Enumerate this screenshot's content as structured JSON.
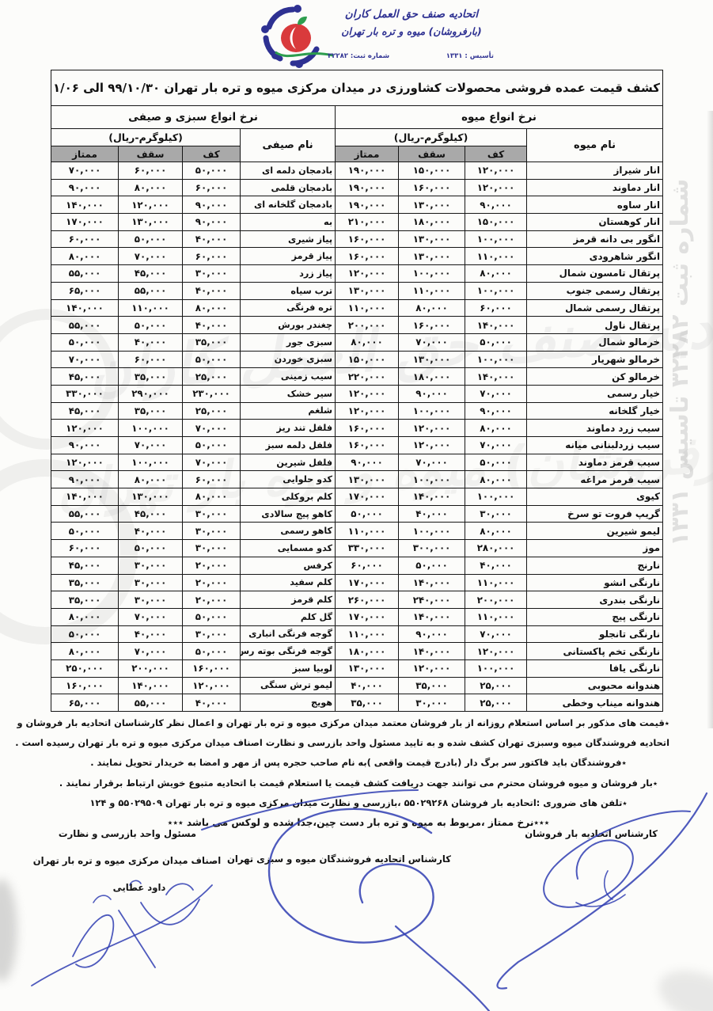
{
  "logo": {
    "line1": "اتحادیه صنف حق العمل کاران",
    "line2": "(بارفروشان) میوه و تره بار تهران",
    "registration": "شماره ثبت: ۳۲۲۸۲",
    "established": "تأسیس : ۱۳۳۱"
  },
  "title": "کشف قیمت عمده فروشی محصولات کشاورزی در میدان مرکزی میوه و تره بار تهران ۹۹/۱۰/۳۰  الی ۹۹/۱۱/۰۶",
  "sections": {
    "fruit": {
      "header": "نرخ انواع میوه",
      "unit": "(کیلوگرم-ریال)",
      "name_col": "نام میوه",
      "cols": [
        "کف",
        "سقف",
        "ممتاز"
      ]
    },
    "veg": {
      "header": "نرخ انواع سبزی و صیفی",
      "unit": "(کیلوگرم-ریال)",
      "name_col": "نام صیفی",
      "cols": [
        "کف",
        "سقف",
        "ممتاز"
      ]
    }
  },
  "table": {
    "fruits": [
      {
        "name": "انار شیراز",
        "kaf": "۱۲۰,۰۰۰",
        "saghf": "۱۵۰,۰۰۰",
        "momtaz": "۱۹۰,۰۰۰"
      },
      {
        "name": "انار دماوند",
        "kaf": "۱۲۰,۰۰۰",
        "saghf": "۱۶۰,۰۰۰",
        "momtaz": "۱۹۰,۰۰۰"
      },
      {
        "name": "انار ساوه",
        "kaf": "۹۰,۰۰۰",
        "saghf": "۱۳۰,۰۰۰",
        "momtaz": "۱۹۰,۰۰۰"
      },
      {
        "name": "انار کوهستان",
        "kaf": "۱۵۰,۰۰۰",
        "saghf": "۱۸۰,۰۰۰",
        "momtaz": "۲۱۰,۰۰۰"
      },
      {
        "name": "انگور بی دانه قرمز",
        "kaf": "۱۰۰,۰۰۰",
        "saghf": "۱۳۰,۰۰۰",
        "momtaz": "۱۶۰,۰۰۰"
      },
      {
        "name": "انگور شاهرودی",
        "kaf": "۱۱۰,۰۰۰",
        "saghf": "۱۳۰,۰۰۰",
        "momtaz": "۱۶۰,۰۰۰"
      },
      {
        "name": "پرتقال تامسون شمال",
        "kaf": "۸۰,۰۰۰",
        "saghf": "۱۰۰,۰۰۰",
        "momtaz": "۱۲۰,۰۰۰"
      },
      {
        "name": "پرتقال رسمی جنوب",
        "kaf": "۱۰۰,۰۰۰",
        "saghf": "۱۱۰,۰۰۰",
        "momtaz": "۱۳۰,۰۰۰"
      },
      {
        "name": "پرتقال رسمی شمال",
        "kaf": "۶۰,۰۰۰",
        "saghf": "۸۰,۰۰۰",
        "momtaz": "۱۱۰,۰۰۰"
      },
      {
        "name": "پرتقال ناول",
        "kaf": "۱۴۰,۰۰۰",
        "saghf": "۱۶۰,۰۰۰",
        "momtaz": "۲۰۰,۰۰۰"
      },
      {
        "name": "خرمالو شمال",
        "kaf": "۵۰,۰۰۰",
        "saghf": "۷۰,۰۰۰",
        "momtaz": "۸۰,۰۰۰"
      },
      {
        "name": "خرمالو شهریار",
        "kaf": "۱۰۰,۰۰۰",
        "saghf": "۱۳۰,۰۰۰",
        "momtaz": "۱۵۰,۰۰۰"
      },
      {
        "name": "خرمالو کن",
        "kaf": "۱۴۰,۰۰۰",
        "saghf": "۱۸۰,۰۰۰",
        "momtaz": "۲۲۰,۰۰۰"
      },
      {
        "name": "خیار رسمی",
        "kaf": "۷۰,۰۰۰",
        "saghf": "۹۰,۰۰۰",
        "momtaz": "۱۲۰,۰۰۰"
      },
      {
        "name": "خیار گلخانه",
        "kaf": "۹۰,۰۰۰",
        "saghf": "۱۰۰,۰۰۰",
        "momtaz": "۱۲۰,۰۰۰"
      },
      {
        "name": "سیب زرد دماوند",
        "kaf": "۸۰,۰۰۰",
        "saghf": "۱۲۰,۰۰۰",
        "momtaz": "۱۶۰,۰۰۰"
      },
      {
        "name": "سیب زردلبنانی میانه",
        "kaf": "۷۰,۰۰۰",
        "saghf": "۱۲۰,۰۰۰",
        "momtaz": "۱۶۰,۰۰۰"
      },
      {
        "name": "سیب قرمز دماوند",
        "kaf": "۵۰,۰۰۰",
        "saghf": "۷۰,۰۰۰",
        "momtaz": "۹۰,۰۰۰"
      },
      {
        "name": "سیب قرمز مراغه",
        "kaf": "۸۰,۰۰۰",
        "saghf": "۱۰۰,۰۰۰",
        "momtaz": "۱۳۰,۰۰۰"
      },
      {
        "name": "کیوی",
        "kaf": "۱۰۰,۰۰۰",
        "saghf": "۱۴۰,۰۰۰",
        "momtaz": "۱۷۰,۰۰۰"
      },
      {
        "name": "گریپ فروت تو سرخ",
        "kaf": "۳۰,۰۰۰",
        "saghf": "۴۰,۰۰۰",
        "momtaz": "۵۰,۰۰۰"
      },
      {
        "name": "لیمو شیرین",
        "kaf": "۸۰,۰۰۰",
        "saghf": "۱۰۰,۰۰۰",
        "momtaz": "۱۱۰,۰۰۰"
      },
      {
        "name": "موز",
        "kaf": "۲۸۰,۰۰۰",
        "saghf": "۳۰۰,۰۰۰",
        "momtaz": "۳۳۰,۰۰۰"
      },
      {
        "name": "نارنج",
        "kaf": "۴۰,۰۰۰",
        "saghf": "۵۰,۰۰۰",
        "momtaz": "۶۰,۰۰۰"
      },
      {
        "name": "نارنگی انشو",
        "kaf": "۱۱۰,۰۰۰",
        "saghf": "۱۴۰,۰۰۰",
        "momtaz": "۱۷۰,۰۰۰"
      },
      {
        "name": "نارنگی بندری",
        "kaf": "۲۰۰,۰۰۰",
        "saghf": "۲۴۰,۰۰۰",
        "momtaz": "۲۶۰,۰۰۰"
      },
      {
        "name": "نارنگی پیج",
        "kaf": "۱۱۰,۰۰۰",
        "saghf": "۱۴۰,۰۰۰",
        "momtaz": "۱۷۰,۰۰۰"
      },
      {
        "name": "نارنگی تانجلو",
        "kaf": "۷۰,۰۰۰",
        "saghf": "۹۰,۰۰۰",
        "momtaz": "۱۱۰,۰۰۰"
      },
      {
        "name": "نارنگی تخم پاکستانی",
        "kaf": "۱۲۰,۰۰۰",
        "saghf": "۱۴۰,۰۰۰",
        "momtaz": "۱۸۰,۰۰۰"
      },
      {
        "name": "نارنگی یافا",
        "kaf": "۱۰۰,۰۰۰",
        "saghf": "۱۲۰,۰۰۰",
        "momtaz": "۱۳۰,۰۰۰"
      },
      {
        "name": "هندوانه محبوبی",
        "kaf": "۲۵,۰۰۰",
        "saghf": "۳۵,۰۰۰",
        "momtaz": "۴۰,۰۰۰"
      },
      {
        "name": "هندوانه میناب وخطی",
        "kaf": "۲۵,۰۰۰",
        "saghf": "۳۰,۰۰۰",
        "momtaz": "۳۵,۰۰۰"
      }
    ],
    "vegetables": [
      {
        "name": "بادمجان دلمه ای",
        "kaf": "۵۰,۰۰۰",
        "saghf": "۶۰,۰۰۰",
        "momtaz": "۷۰,۰۰۰"
      },
      {
        "name": "بادمجان قلمی",
        "kaf": "۶۰,۰۰۰",
        "saghf": "۸۰,۰۰۰",
        "momtaz": "۹۰,۰۰۰"
      },
      {
        "name": "بادمجان گلخانه ای",
        "kaf": "۹۰,۰۰۰",
        "saghf": "۱۲۰,۰۰۰",
        "momtaz": "۱۴۰,۰۰۰"
      },
      {
        "name": "به",
        "kaf": "۹۰,۰۰۰",
        "saghf": "۱۳۰,۰۰۰",
        "momtaz": "۱۷۰,۰۰۰"
      },
      {
        "name": "پیاز شیری",
        "kaf": "۴۰,۰۰۰",
        "saghf": "۵۰,۰۰۰",
        "momtaz": "۶۰,۰۰۰"
      },
      {
        "name": "پیاز قرمز",
        "kaf": "۶۰,۰۰۰",
        "saghf": "۷۰,۰۰۰",
        "momtaz": "۸۰,۰۰۰"
      },
      {
        "name": "پیاز زرد",
        "kaf": "۳۰,۰۰۰",
        "saghf": "۴۵,۰۰۰",
        "momtaz": "۵۵,۰۰۰"
      },
      {
        "name": "ترب سیاه",
        "kaf": "۴۰,۰۰۰",
        "saghf": "۵۵,۰۰۰",
        "momtaz": "۶۵,۰۰۰"
      },
      {
        "name": "تره فرنگی",
        "kaf": "۸۰,۰۰۰",
        "saghf": "۱۱۰,۰۰۰",
        "momtaz": "۱۴۰,۰۰۰"
      },
      {
        "name": "چغندر بورش",
        "kaf": "۴۰,۰۰۰",
        "saghf": "۵۰,۰۰۰",
        "momtaz": "۵۵,۰۰۰"
      },
      {
        "name": "سبزی جور",
        "kaf": "۳۵,۰۰۰",
        "saghf": "۴۰,۰۰۰",
        "momtaz": "۵۰,۰۰۰"
      },
      {
        "name": "سبزی خوردن",
        "kaf": "۵۰,۰۰۰",
        "saghf": "۶۰,۰۰۰",
        "momtaz": "۷۰,۰۰۰"
      },
      {
        "name": "سیب زمینی",
        "kaf": "۲۵,۰۰۰",
        "saghf": "۳۵,۰۰۰",
        "momtaz": "۴۵,۰۰۰"
      },
      {
        "name": "سیر خشک",
        "kaf": "۲۳۰,۰۰۰",
        "saghf": "۲۹۰,۰۰۰",
        "momtaz": "۳۳۰,۰۰۰"
      },
      {
        "name": "شلغم",
        "kaf": "۲۵,۰۰۰",
        "saghf": "۳۵,۰۰۰",
        "momtaz": "۴۵,۰۰۰"
      },
      {
        "name": "فلفل تند ریز",
        "kaf": "۷۰,۰۰۰",
        "saghf": "۱۰۰,۰۰۰",
        "momtaz": "۱۲۰,۰۰۰"
      },
      {
        "name": "فلفل دلمه سبز",
        "kaf": "۵۰,۰۰۰",
        "saghf": "۷۰,۰۰۰",
        "momtaz": "۹۰,۰۰۰"
      },
      {
        "name": "فلفل شیرین",
        "kaf": "۷۰,۰۰۰",
        "saghf": "۱۰۰,۰۰۰",
        "momtaz": "۱۲۰,۰۰۰"
      },
      {
        "name": "کدو حلوایی",
        "kaf": "۶۰,۰۰۰",
        "saghf": "۸۰,۰۰۰",
        "momtaz": "۹۰,۰۰۰"
      },
      {
        "name": "کلم بروکلی",
        "kaf": "۸۰,۰۰۰",
        "saghf": "۱۳۰,۰۰۰",
        "momtaz": "۱۴۰,۰۰۰"
      },
      {
        "name": "کاهو پیج سالادی",
        "kaf": "۳۰,۰۰۰",
        "saghf": "۴۵,۰۰۰",
        "momtaz": "۵۵,۰۰۰"
      },
      {
        "name": "کاهو رسمی",
        "kaf": "۳۰,۰۰۰",
        "saghf": "۴۰,۰۰۰",
        "momtaz": "۵۰,۰۰۰"
      },
      {
        "name": "کدو مسمایی",
        "kaf": "۳۰,۰۰۰",
        "saghf": "۵۰,۰۰۰",
        "momtaz": "۶۰,۰۰۰"
      },
      {
        "name": "کرفس",
        "kaf": "۲۰,۰۰۰",
        "saghf": "۳۰,۰۰۰",
        "momtaz": "۴۵,۰۰۰"
      },
      {
        "name": "کلم سفید",
        "kaf": "۲۰,۰۰۰",
        "saghf": "۳۰,۰۰۰",
        "momtaz": "۳۵,۰۰۰"
      },
      {
        "name": "کلم قرمز",
        "kaf": "۲۰,۰۰۰",
        "saghf": "۳۰,۰۰۰",
        "momtaz": "۳۵,۰۰۰"
      },
      {
        "name": "گل کلم",
        "kaf": "۵۰,۰۰۰",
        "saghf": "۷۰,۰۰۰",
        "momtaz": "۸۰,۰۰۰"
      },
      {
        "name": "گوجه فرنگی انباری",
        "kaf": "۳۰,۰۰۰",
        "saghf": "۴۰,۰۰۰",
        "momtaz": "۵۰,۰۰۰"
      },
      {
        "name": "گوجه فرنگی بوته رس",
        "kaf": "۵۰,۰۰۰",
        "saghf": "۷۰,۰۰۰",
        "momtaz": "۸۰,۰۰۰"
      },
      {
        "name": "لوبیا سبز",
        "kaf": "۱۶۰,۰۰۰",
        "saghf": "۲۰۰,۰۰۰",
        "momtaz": "۲۵۰,۰۰۰"
      },
      {
        "name": "لیمو ترش سنگی",
        "kaf": "۱۲۰,۰۰۰",
        "saghf": "۱۴۰,۰۰۰",
        "momtaz": "۱۶۰,۰۰۰"
      },
      {
        "name": "هویج",
        "kaf": "۴۰,۰۰۰",
        "saghf": "۵۵,۰۰۰",
        "momtaz": "۶۵,۰۰۰"
      }
    ]
  },
  "notes": [
    {
      "text": "٭قیمت های مذکور بر اساس استعلام روزانه از بار فروشان معتمد میدان مرکزی میوه و تره بار تهران و اعمال نظر کارشناسان اتحادیه بار فروشان و",
      "align": "right"
    },
    {
      "text": "اتحادیه فروشندگان میوه وسبزی تهران کشف شده و به تایید مسئول واحد بازرسی و نظارت اصناف میدان مرکزی میوه و تره بار تهران رسیده است .",
      "align": "right"
    },
    {
      "text": "٭فروشندگان باید فاکتور سر برگ دار (بادرج قیمت واقعی )به نام صاحب حجره پس از مهر و امضا به خریدار تحویل نمایند .",
      "align": "center"
    },
    {
      "text": "٭بار فروشان و میوه فروشان محترم می توانند جهت دریافت کشف قیمت  یا استعلام قیمت با اتحادیه متبوع خویش ارتباط برقرار نمایند .",
      "align": "center"
    },
    {
      "text": "٭تلفن های ضروری :اتحادیه بار فروشان  ۵۵۰۲۹۲۶۸  ،بازرسی و نظارت میدان مرکزی میوه و تره بار تهران ۵۵۰۲۹۵۰۹  و  ۱۲۴",
      "align": "center"
    },
    {
      "text": "٭٭٭نرخ ممتاز ،مربوط به میوه و تره بار دست چین،جدا شده و لوکس می باشد ٭٭٭",
      "align": "center last"
    }
  ],
  "signatures": {
    "right_label": "کارشناس اتحادیه بار فروشان",
    "center_label": "کارشناس اتحادیه فروشندگان میوه و سبزی تهران",
    "left_label_1": "مسئول واحد بازرسی و نظارت",
    "left_label_2": "اصناف میدان مرکزی میوه و تره بار تهران",
    "left_label_3": "داود عطایی"
  },
  "watermarks": {
    "big1": "اتحادیه صنف حق العمل کاران",
    "big2": "(بارفروشان) میوه و تره بار تهران",
    "vertical": "شماره ثبت ۳۲۲۸۲   تاسیس ۱۳۳۱"
  },
  "colors": {
    "header_gray": "#a9a9a9",
    "ink_blue": "#2f3db1",
    "logo_blue": "#2e3192",
    "logo_red": "#d93a3c",
    "logo_green": "#2e9e4f"
  }
}
